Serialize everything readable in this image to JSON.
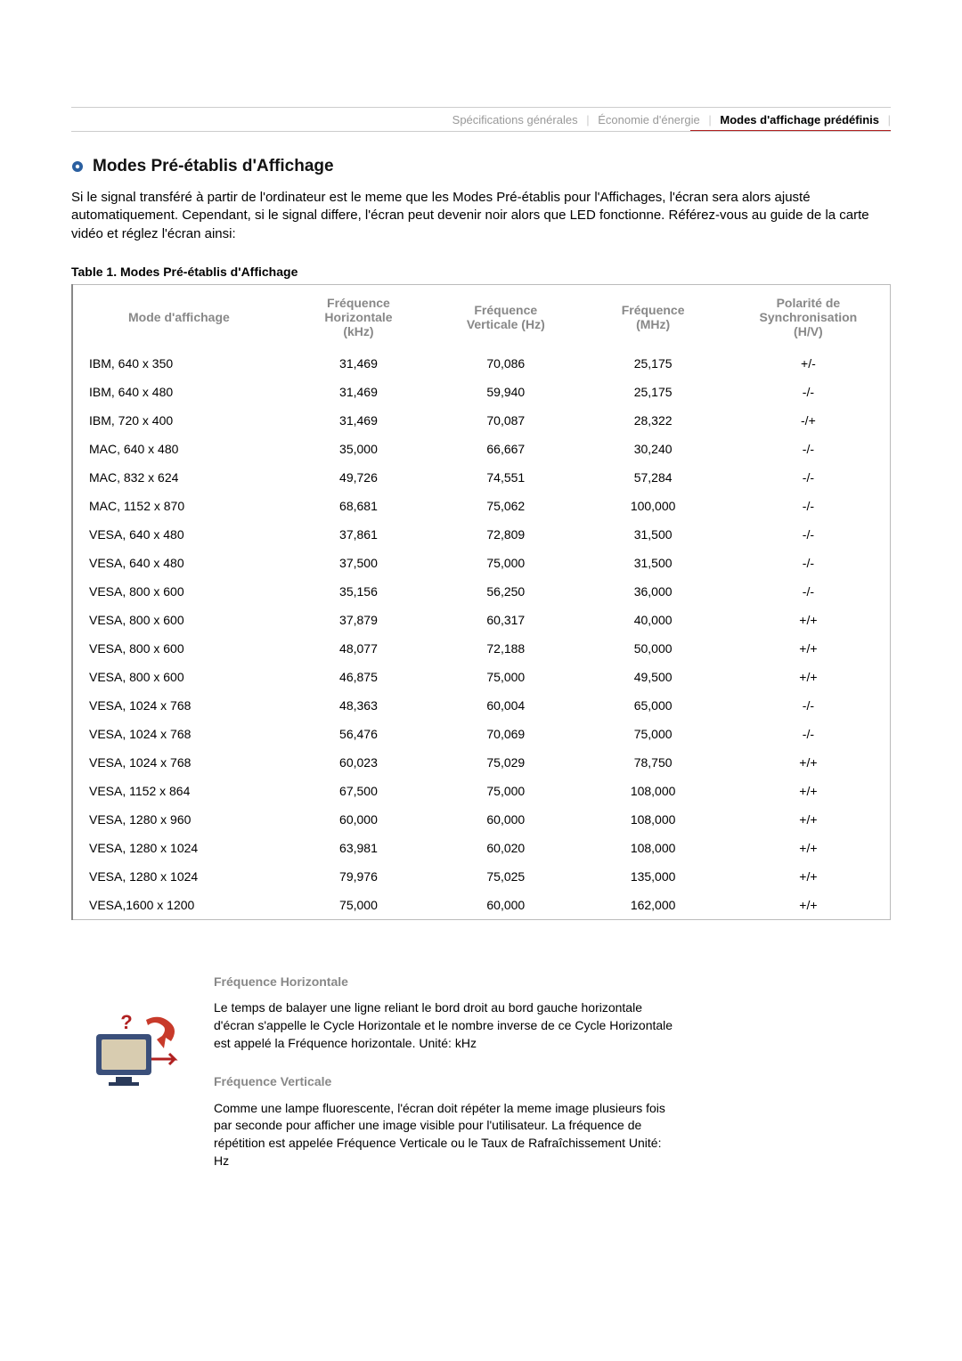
{
  "nav": {
    "items": [
      {
        "label": "Spécifications générales",
        "active": false
      },
      {
        "label": "Économie d'énergie",
        "active": false
      },
      {
        "label": "Modes d'affichage prédéfinis",
        "active": true
      }
    ]
  },
  "colors": {
    "nav_inactive": "#999999",
    "nav_active": "#000000",
    "nav_underline": "#b02020",
    "nav_border": "#cccccc",
    "heading_muted": "#888888",
    "table_border": "#bbbbbb",
    "text": "#000000",
    "background": "#ffffff"
  },
  "title": "Modes Pré-établis d'Affichage",
  "intro": "Si le signal transféré à partir de l'ordinateur est le meme que les Modes Pré-établis pour l'Affichages, l'écran sera alors ajusté automatiquement. Cependant, si le signal differe, l'écran peut devenir noir alors que LED fonctionne. Référez-vous au guide de la carte vidéo et réglez l'écran ainsi:",
  "table": {
    "caption": "Table 1. Modes Pré-établis d'Affichage",
    "columns": [
      "Mode d'affichage",
      "Fréquence Horizontale (kHz)",
      "Fréquence Verticale (Hz)",
      "Fréquence (MHz)",
      "Polarité de Synchronisation (H/V)"
    ],
    "col_widths": [
      "26%",
      "18%",
      "18%",
      "18%",
      "20%"
    ],
    "rows": [
      [
        "IBM, 640 x 350",
        "31,469",
        "70,086",
        "25,175",
        "+/-"
      ],
      [
        "IBM, 640 x 480",
        "31,469",
        "59,940",
        "25,175",
        "-/-"
      ],
      [
        "IBM, 720 x 400",
        "31,469",
        "70,087",
        "28,322",
        "-/+"
      ],
      [
        "MAC, 640 x 480",
        "35,000",
        "66,667",
        "30,240",
        "-/-"
      ],
      [
        "MAC, 832 x 624",
        "49,726",
        "74,551",
        "57,284",
        "-/-"
      ],
      [
        "MAC, 1152 x 870",
        "68,681",
        "75,062",
        "100,000",
        "-/-"
      ],
      [
        "VESA, 640 x 480",
        "37,861",
        "72,809",
        "31,500",
        "-/-"
      ],
      [
        "VESA, 640 x 480",
        "37,500",
        "75,000",
        "31,500",
        "-/-"
      ],
      [
        "VESA, 800 x 600",
        "35,156",
        "56,250",
        "36,000",
        "-/-"
      ],
      [
        "VESA, 800 x 600",
        "37,879",
        "60,317",
        "40,000",
        "+/+"
      ],
      [
        "VESA, 800 x 600",
        "48,077",
        "72,188",
        "50,000",
        "+/+"
      ],
      [
        "VESA, 800 x 600",
        "46,875",
        "75,000",
        "49,500",
        "+/+"
      ],
      [
        "VESA, 1024 x 768",
        "48,363",
        "60,004",
        "65,000",
        "-/-"
      ],
      [
        "VESA, 1024 x 768",
        "56,476",
        "70,069",
        "75,000",
        "-/-"
      ],
      [
        "VESA, 1024 x 768",
        "60,023",
        "75,029",
        "78,750",
        "+/+"
      ],
      [
        "VESA, 1152 x 864",
        "67,500",
        "75,000",
        "108,000",
        "+/+"
      ],
      [
        "VESA, 1280 x 960",
        "60,000",
        "60,000",
        "108,000",
        "+/+"
      ],
      [
        "VESA, 1280 x 1024",
        "63,981",
        "60,020",
        "108,000",
        "+/+"
      ],
      [
        "VESA, 1280 x 1024",
        "79,976",
        "75,025",
        "135,000",
        "+/+"
      ],
      [
        "VESA,1600 x 1200",
        "75,000",
        "60,000",
        "162,000",
        "+/+"
      ]
    ]
  },
  "definitions": {
    "items": [
      {
        "heading": "Fréquence Horizontale",
        "body": "Le temps de balayer une ligne reliant le bord droit au bord gauche horizontale d'écran s'appelle le Cycle Horizontale et le nombre inverse de ce Cycle Horizontale est appelé la Fréquence horizontale. Unité: kHz"
      },
      {
        "heading": "Fréquence Verticale",
        "body": "Comme une lampe fluorescente, l'écran doit répéter la meme image plusieurs fois par seconde pour afficher une image visible pour l'utilisateur. La fréquence de répétition est appelée Fréquence Verticale ou le Taux de Rafraîchissement Unité: Hz"
      }
    ]
  }
}
